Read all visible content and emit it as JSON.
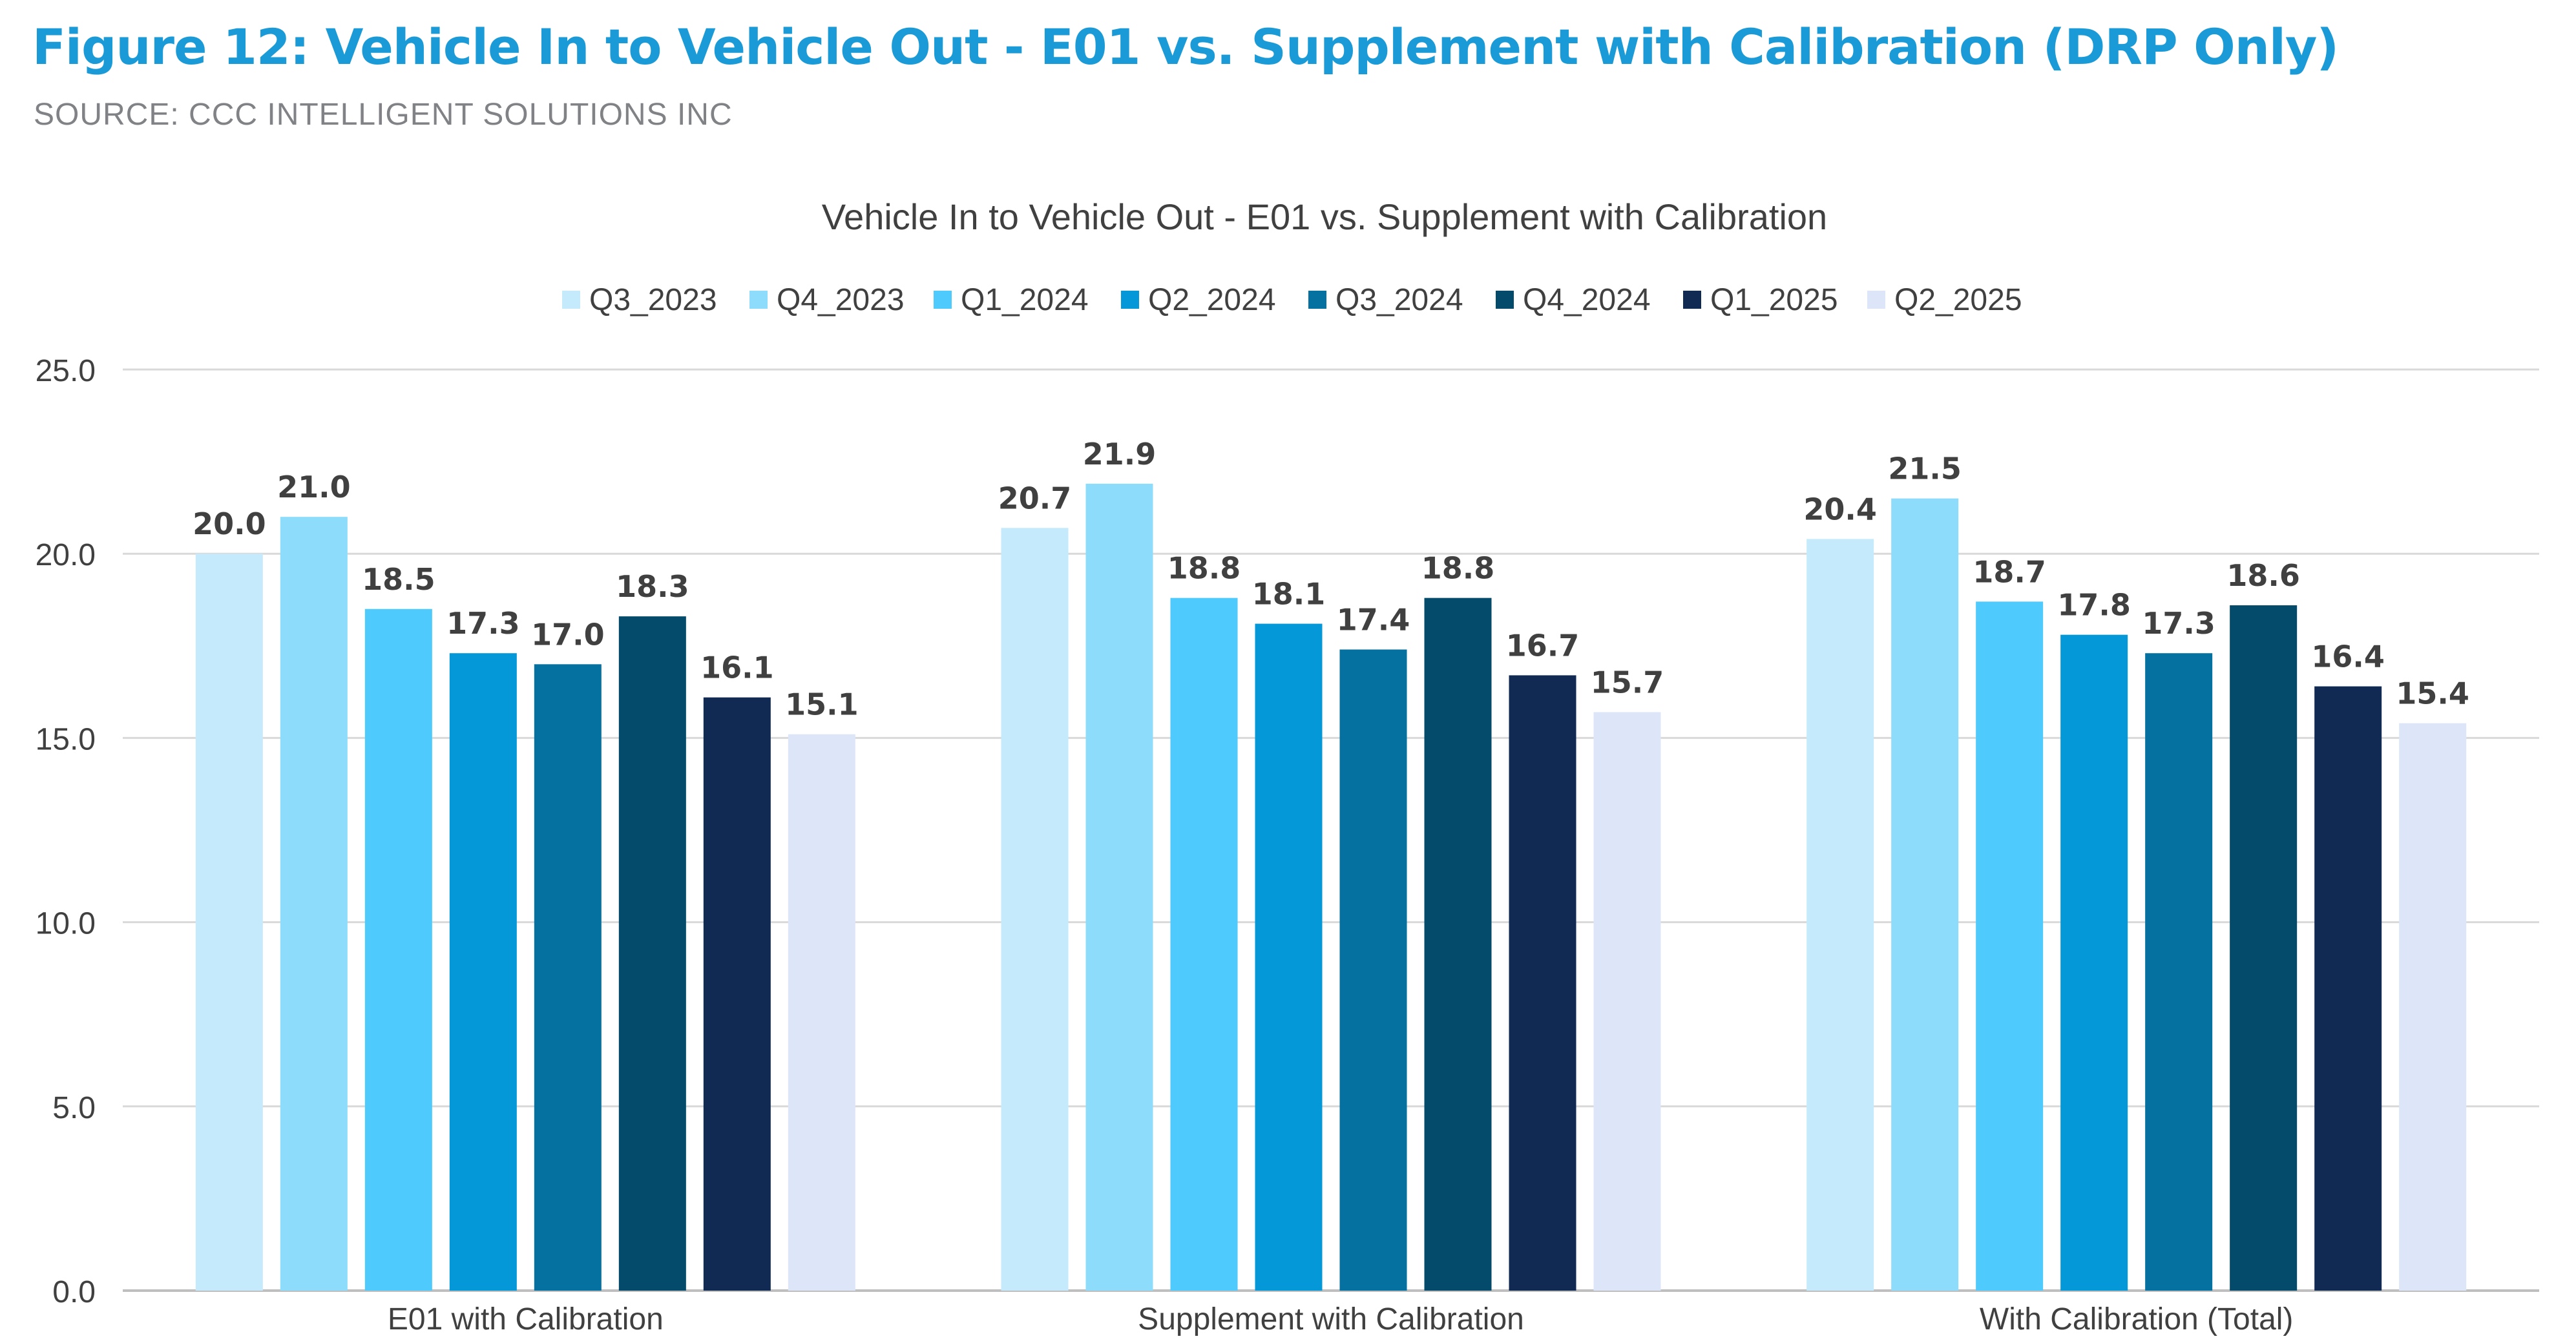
{
  "figure": {
    "title": "Figure 12: Vehicle In to Vehicle Out - E01 vs. Supplement with Calibration (DRP Only)",
    "source": "SOURCE: CCC INTELLIGENT SOLUTIONS INC"
  },
  "chart_data": {
    "type": "bar",
    "title": "Vehicle In to Vehicle Out - E01 vs. Supplement with Calibration",
    "xlabel": "",
    "ylabel": "",
    "ylim": [
      0,
      25
    ],
    "yticks": [
      "0.0",
      "5.0",
      "10.0",
      "15.0",
      "20.0",
      "25.0"
    ],
    "grid": true,
    "legend_position": "top-center",
    "categories": [
      "E01 with Calibration",
      "Supplement with Calibration",
      "With Calibration (Total)"
    ],
    "series": [
      {
        "name": "Q3_2023",
        "color": "#c5eafb",
        "values": [
          20.0,
          20.7,
          20.4
        ]
      },
      {
        "name": "Q4_2023",
        "color": "#8ddcfb",
        "values": [
          21.0,
          21.9,
          21.5
        ]
      },
      {
        "name": "Q1_2024",
        "color": "#4ecafc",
        "values": [
          18.5,
          18.8,
          18.7
        ]
      },
      {
        "name": "Q2_2024",
        "color": "#0498d8",
        "values": [
          17.3,
          18.1,
          17.8
        ]
      },
      {
        "name": "Q3_2024",
        "color": "#0571a0",
        "values": [
          17.0,
          17.4,
          17.3
        ]
      },
      {
        "name": "Q4_2024",
        "color": "#044b6b",
        "values": [
          18.3,
          18.8,
          18.6
        ]
      },
      {
        "name": "Q1_2025",
        "color": "#112a54",
        "values": [
          16.1,
          16.7,
          16.4
        ]
      },
      {
        "name": "Q2_2025",
        "color": "#dce6f8",
        "values": [
          15.1,
          15.7,
          15.4
        ]
      }
    ]
  }
}
